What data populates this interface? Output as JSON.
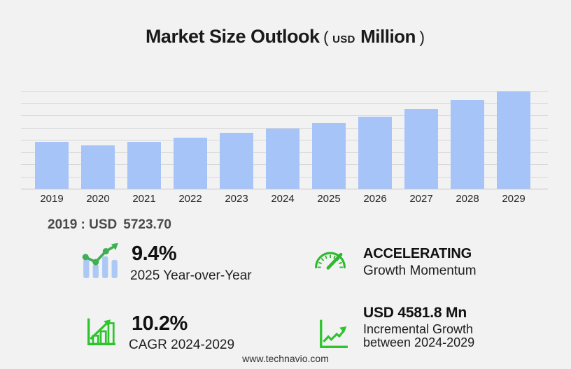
{
  "title": {
    "main": "Market Size Outlook",
    "paren_open": "(",
    "currency": "USD",
    "unit": "Million",
    "paren_close": ")"
  },
  "chart_data": {
    "type": "bar",
    "title": "Market Size Outlook (USD Million)",
    "unit": "USD Million",
    "categories": [
      "2019",
      "2020",
      "2021",
      "2022",
      "2023",
      "2024",
      "2025",
      "2026",
      "2027",
      "2028",
      "2029"
    ],
    "values": [
      5723.7,
      5350,
      5750,
      6230,
      6830,
      7334,
      8023,
      8815,
      9750,
      10880,
      11916
    ],
    "ylim": [
      0,
      12000
    ],
    "gridline_count": 9,
    "grid": true,
    "legend": false,
    "bar_color": "#a7c4f8"
  },
  "annotation": {
    "prefix": "2019 : USD",
    "value": "5723.70"
  },
  "stats": {
    "yoy": {
      "icon": "trend-bars-icon",
      "value": "9.4%",
      "label": "2025 Year-over-Year"
    },
    "momentum": {
      "icon": "gauge-icon",
      "value": "ACCELERATING",
      "label": "Growth Momentum"
    },
    "cagr": {
      "icon": "growth-bars-icon",
      "value": "10.2%",
      "label": "CAGR 2024-2029"
    },
    "incremental": {
      "icon": "line-graph-icon",
      "value": "USD 4581.8 Mn",
      "label_line1": "Incremental Growth",
      "label_line2": "between 2024-2029"
    }
  },
  "footer": {
    "website": "www.technavio.com"
  },
  "colors": {
    "background": "#f2f2f3",
    "bar_blue": "#a7c4f8",
    "icon_bar_blue": "#abc9f4",
    "gridline": "#d6d6d7",
    "axis_line": "#c3c3c4",
    "green_line": "#3fae54",
    "green_outline": "#2ec42e",
    "gauge_green": "#2eb82e",
    "title_text": "#1a1a1a",
    "annotation_text": "#4a4a4a"
  }
}
